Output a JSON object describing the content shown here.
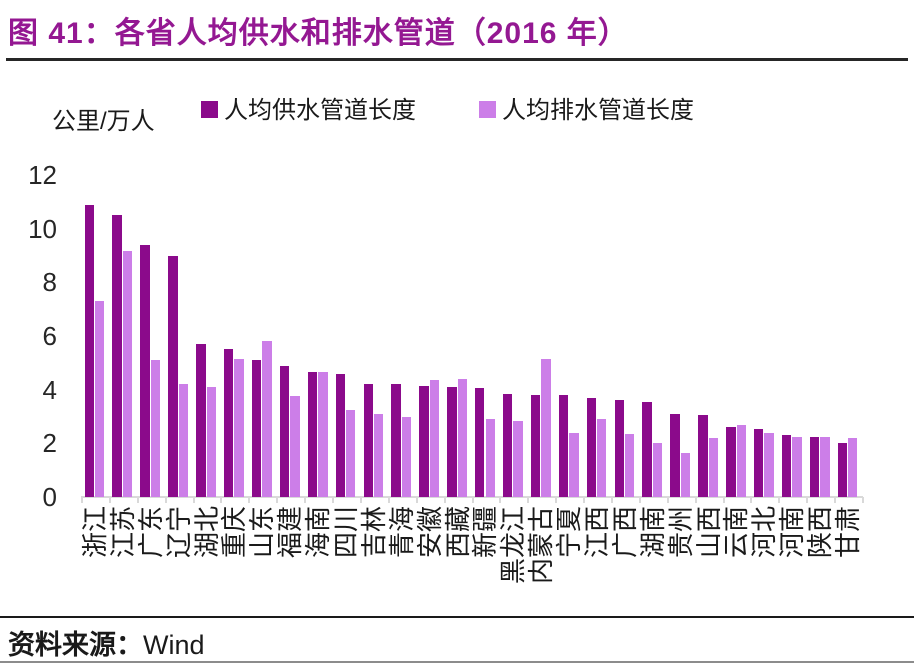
{
  "title": "图 41：各省人均供水和排水管道（2016 年）",
  "unit_label": "公里/万人",
  "legend": [
    {
      "label": "人均供水管道长度",
      "color": "#8B0A8B"
    },
    {
      "label": "人均排水管道长度",
      "color": "#CC7EE8"
    }
  ],
  "source": {
    "prefix": "资料来源：",
    "name": "Wind"
  },
  "colors": {
    "title": "#941892",
    "supply_bar": "#8B0A8B",
    "drainage_bar": "#CC7EE8",
    "axis": "#d9d9d9",
    "text": "#1a1a1a"
  },
  "chart_data": {
    "type": "bar",
    "title": "各省人均供水和排水管道（2016 年）",
    "ylabel": "公里/万人",
    "xlabel": "",
    "ylim": [
      0,
      12
    ],
    "yticks": [
      0,
      2,
      4,
      6,
      8,
      10,
      12
    ],
    "grid": false,
    "legend_position": "top",
    "categories": [
      "浙江",
      "江苏",
      "广东",
      "辽宁",
      "湖北",
      "重庆",
      "山东",
      "福建",
      "海南",
      "四川",
      "吉林",
      "青海",
      "安徽",
      "西藏",
      "新疆",
      "黑龙江",
      "内蒙古",
      "宁夏",
      "江西",
      "广西",
      "湖南",
      "贵州",
      "山西",
      "云南",
      "河北",
      "河南",
      "陕西",
      "甘肃"
    ],
    "series": [
      {
        "name": "人均供水管道长度",
        "color": "#8B0A8B",
        "values": [
          10.9,
          10.5,
          9.4,
          9.0,
          5.7,
          5.5,
          5.1,
          4.9,
          4.65,
          4.6,
          4.2,
          4.2,
          4.15,
          4.1,
          4.05,
          3.85,
          3.8,
          3.8,
          3.7,
          3.6,
          3.55,
          3.1,
          3.05,
          2.6,
          2.55,
          2.3,
          2.25,
          2.0
        ]
      },
      {
        "name": "人均排水管道长度",
        "color": "#CC7EE8",
        "values": [
          7.3,
          9.15,
          5.1,
          4.2,
          4.1,
          5.15,
          5.8,
          3.75,
          4.65,
          3.25,
          3.1,
          3.0,
          4.35,
          4.4,
          2.9,
          2.85,
          5.15,
          2.4,
          2.9,
          2.35,
          2.0,
          1.65,
          2.2,
          2.7,
          2.4,
          2.25,
          2.25,
          2.2
        ]
      }
    ]
  }
}
